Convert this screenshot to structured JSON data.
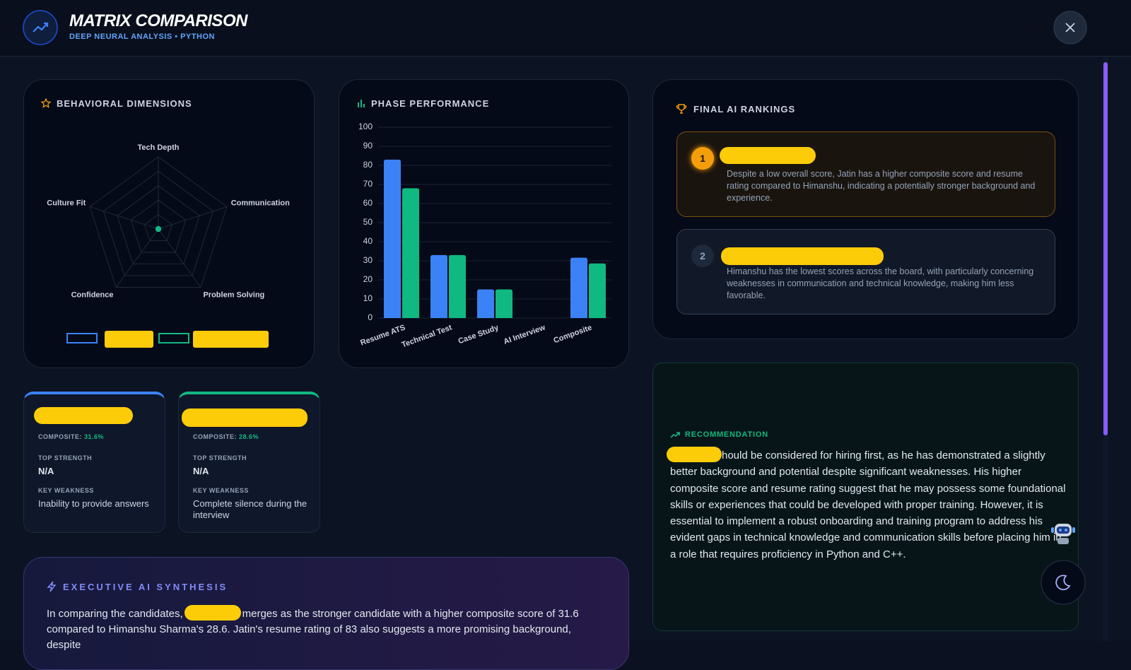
{
  "header": {
    "title": "MATRIX COMPARISON",
    "subtitle": "DEEP NEURAL ANALYSIS • PYTHON"
  },
  "chart_data": [
    {
      "type": "radar",
      "title": "BEHAVIORAL DIMENSIONS",
      "categories": [
        "Tech Depth",
        "Communication",
        "Problem Solving",
        "Confidence",
        "Culture Fit"
      ],
      "series": [
        {
          "color": "#3b82f6",
          "values": [
            0,
            0,
            0,
            0,
            0
          ]
        },
        {
          "color": "#10b981",
          "values": [
            0,
            0,
            0,
            0,
            0
          ]
        }
      ],
      "rlim": [
        0,
        100
      ],
      "rticks": [
        20,
        40,
        60,
        80,
        100
      ]
    },
    {
      "type": "bar",
      "title": "PHASE PERFORMANCE",
      "categories": [
        "Resume ATS",
        "Technical Test",
        "Case Study",
        "AI Interview",
        "Composite"
      ],
      "series": [
        {
          "color": "#3b82f6",
          "values": [
            83,
            33,
            15,
            0,
            31.6
          ]
        },
        {
          "color": "#10b981",
          "values": [
            68,
            33,
            15,
            0,
            28.6
          ]
        }
      ],
      "ylim": [
        0,
        100
      ],
      "yticks": [
        0,
        10,
        20,
        30,
        40,
        50,
        60,
        70,
        80,
        90,
        100
      ],
      "grid": true
    }
  ],
  "cards": [
    {
      "composite_label": "COMPOSITE:",
      "composite": "31.6%",
      "strength_label": "TOP STRENGTH",
      "strength": "N/A",
      "weakness_label": "KEY WEAKNESS",
      "weakness": "Inability to provide answers"
    },
    {
      "composite_label": "COMPOSITE:",
      "composite": "28.6%",
      "strength_label": "TOP STRENGTH",
      "strength": "N/A",
      "weakness_label": "KEY WEAKNESS",
      "weakness": "Complete silence during the interview"
    }
  ],
  "rankings": {
    "title": "FINAL AI RANKINGS",
    "items": [
      {
        "rank": 1,
        "text": "Despite a low overall score, Jatin has a higher composite score and resume rating compared to Himanshu, indicating a potentially stronger background and experience."
      },
      {
        "rank": 2,
        "text": "Himanshu has the lowest scores across the board, with particularly concerning weaknesses in communication and technical knowledge, making him less favorable."
      }
    ]
  },
  "recommendation": {
    "title": "RECOMMENDATION",
    "text": "hould be considered for hiring first, as he has demonstrated a slightly better background and potential despite significant weaknesses. His higher composite score and resume rating suggest that he may possess some foundational skills or experiences that could be developed with proper training. However, it is essential to implement a robust onboarding and training program to address his evident gaps in technical knowledge and communication skills before placing him in a role that requires proficiency in Python and C++."
  },
  "synthesis": {
    "title": "EXECUTIVE AI SYNTHESIS",
    "text_start": "In comparing the candidates,",
    "text_rest": "merges as the stronger candidate with a higher composite score of 31.6 compared to Himanshu Sharma's 28.6. Jatin's resume rating of 83 also suggests a more promising background, despite"
  }
}
